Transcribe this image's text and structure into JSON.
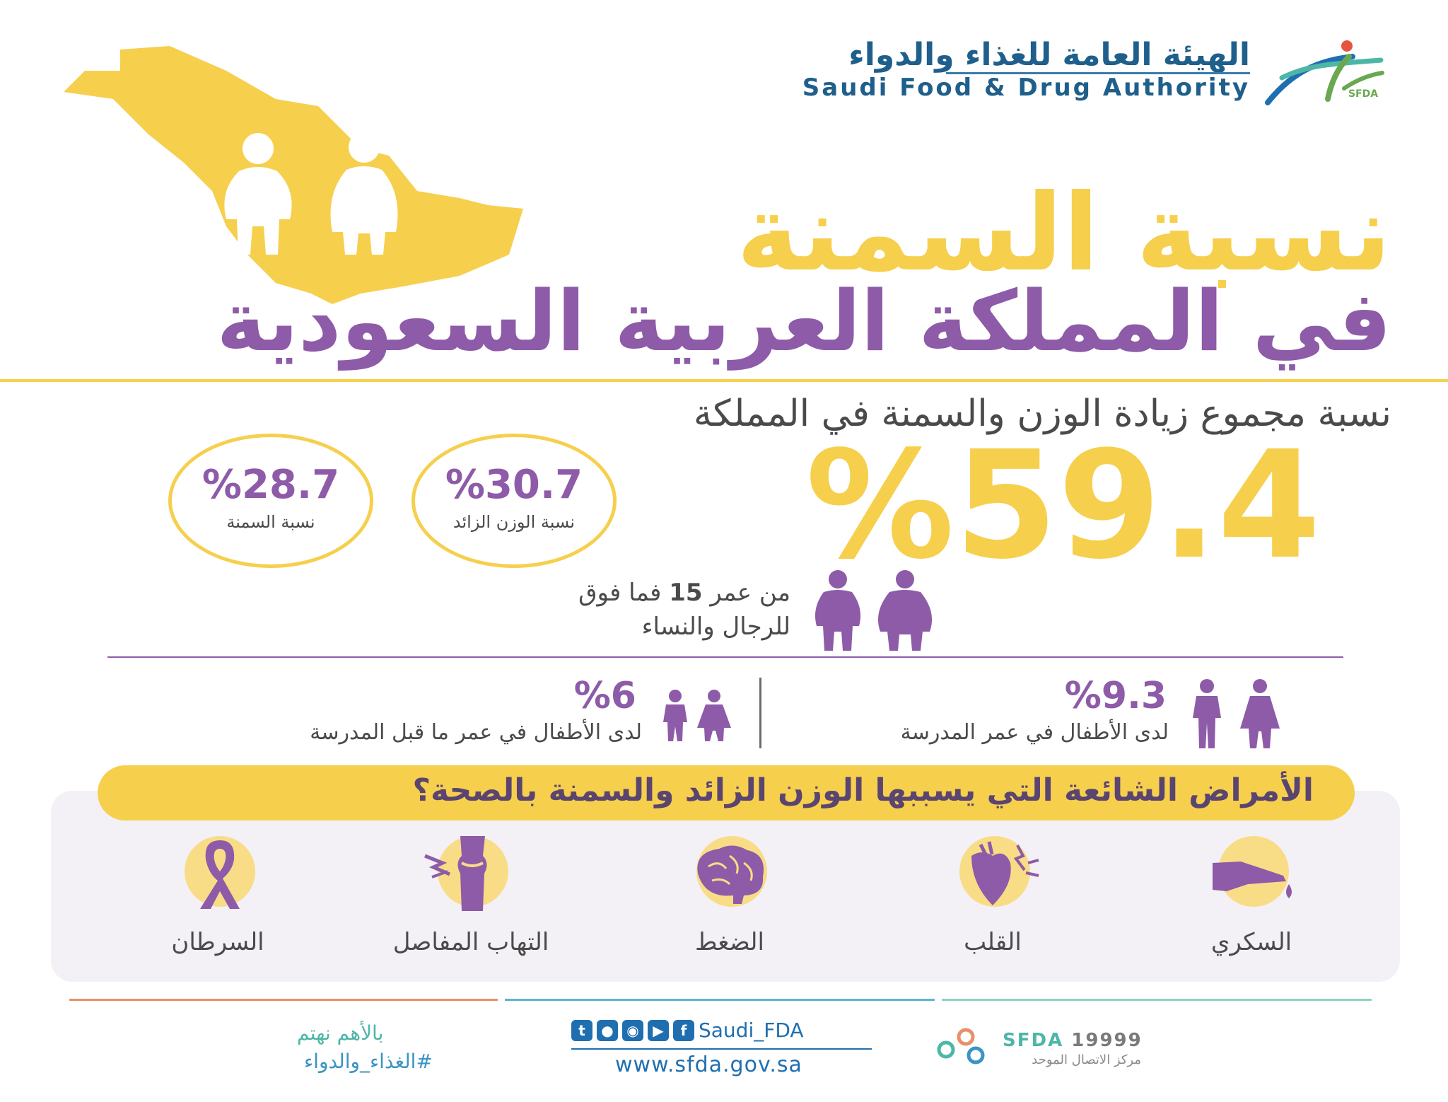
{
  "header": {
    "logo_arabic": "الهيئة العامة للغذاء والدواء",
    "logo_english": "Saudi Food & Drug Authority",
    "logo_mark_text": "SFDA"
  },
  "title": {
    "line1": "نسبة السمنة",
    "line2": "في المملكة العربية السعودية"
  },
  "overview": {
    "subtitle": "نسبة مجموع زيادة الوزن والسمنة في المملكة",
    "total_pct": "%59.4",
    "overweight": {
      "value": "%30.7",
      "label": "نسبة الوزن الزائد"
    },
    "obesity": {
      "value": "%28.7",
      "label": "نسبة السمنة"
    },
    "age_pre": "من عمر ",
    "age_num": "15",
    "age_post": " فما فوق",
    "age_line2": "للرجال والنساء"
  },
  "children": {
    "school": {
      "value": "%9.3",
      "label": "لدى الأطفال في عمر المدرسة"
    },
    "preschool": {
      "value": "%6",
      "label": "لدى الأطفال في عمر ما قبل المدرسة"
    }
  },
  "diseases": {
    "heading": "الأمراض الشائعة التي يسببها الوزن الزائد والسمنة بالصحة؟",
    "items": [
      {
        "name": "السكري",
        "icon": "finger-drop-icon"
      },
      {
        "name": "القلب",
        "icon": "heart-icon"
      },
      {
        "name": "الضغط",
        "icon": "brain-icon"
      },
      {
        "name": "التهاب المفاصل",
        "icon": "joint-icon"
      },
      {
        "name": "السرطان",
        "icon": "ribbon-icon"
      }
    ]
  },
  "footer": {
    "hashtag_line1": "بالأهم نهتم",
    "hashtag_line2": "#الغذاء_والدواء",
    "social_handle": "Saudi_FDA",
    "website": "www.sfda.gov.sa",
    "call_brand": "SFDA",
    "call_number": "19999",
    "call_center": "مركز الاتصال الموحد"
  },
  "colors": {
    "yellow": "#f6cf4d",
    "purple": "#8e5ba8",
    "navy": "#1f5f8b"
  }
}
